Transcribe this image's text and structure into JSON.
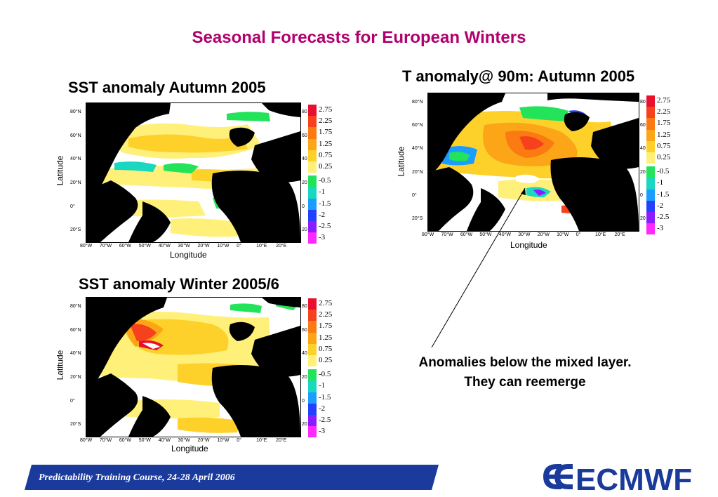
{
  "slide_title": "Seasonal Forecasts for European Winters",
  "panels": [
    {
      "id": "sst-autumn",
      "title": "SST anomaly Autumn 2005",
      "ylabel": "Latitude",
      "xlabel": "Longitude",
      "lat_ticks": [
        "80°N",
        "60°N",
        "40°N",
        "20°N",
        "0°",
        "20°S"
      ],
      "lat_ticks_right": [
        "80",
        "60",
        "40",
        "20",
        "0",
        "20"
      ],
      "lon_ticks": [
        "80°W",
        "70°W",
        "60°W",
        "50°W",
        "40°W",
        "30°W",
        "20°W",
        "10°W",
        "0°",
        "10°E",
        "20°E"
      ]
    },
    {
      "id": "t90-autumn",
      "title": "T anomaly@ 90m: Autumn 2005",
      "ylabel": "Latitude",
      "xlabel": "Longitude",
      "lat_ticks": [
        "80°N",
        "60°N",
        "40°N",
        "20°N",
        "0°",
        "20°S"
      ],
      "lat_ticks_right": [
        "80",
        "60",
        "40",
        "20",
        "0",
        "20"
      ],
      "lon_ticks": [
        "80°W",
        "70°W",
        "60°W",
        "50°W",
        "40°W",
        "30°W",
        "20°W",
        "10°W",
        "0°",
        "10°E",
        "20°E"
      ]
    },
    {
      "id": "sst-winter",
      "title": "SST anomaly Winter 2005/6",
      "ylabel": "Latitude",
      "xlabel": "Longitude",
      "lat_ticks": [
        "80°N",
        "60°N",
        "40°N",
        "20°N",
        "0°",
        "20°S"
      ],
      "lat_ticks_right": [
        "80",
        "60",
        "40",
        "20",
        "0",
        "20"
      ],
      "lon_ticks": [
        "80°W",
        "70°W",
        "60°W",
        "50°W",
        "40°W",
        "30°W",
        "20°W",
        "10°W",
        "0°",
        "10°E",
        "20°E"
      ]
    }
  ],
  "colorbar": {
    "positive": [
      {
        "label": "2.75",
        "color": "#e8102c"
      },
      {
        "label": "2.25",
        "color": "#f5411c"
      },
      {
        "label": "1.75",
        "color": "#fb7a12"
      },
      {
        "label": "1.25",
        "color": "#fca617"
      },
      {
        "label": "0.75",
        "color": "#fed12a"
      },
      {
        "label": "0.25",
        "color": "#fff07a"
      }
    ],
    "negative": [
      {
        "label": "-0.5",
        "color": "#22e35a"
      },
      {
        "label": "-1",
        "color": "#19d7c0"
      },
      {
        "label": "-1.5",
        "color": "#1a9dff"
      },
      {
        "label": "-2",
        "color": "#2440ff"
      },
      {
        "label": "-2.5",
        "color": "#8a1cff"
      },
      {
        "label": "-3",
        "color": "#ff28ff"
      }
    ]
  },
  "annotation": "Anomalies below the mixed layer. They can reemerge",
  "footer": {
    "text": "Predictability Training Course, 24-28 April 2006",
    "band_color": "#1a3a9c"
  },
  "logo": {
    "text": "ECMWF",
    "color": "#1a3a9c"
  },
  "colors": {
    "title": "#b0006e",
    "land": "#000000",
    "ocean_neutral": "#ffffff"
  }
}
